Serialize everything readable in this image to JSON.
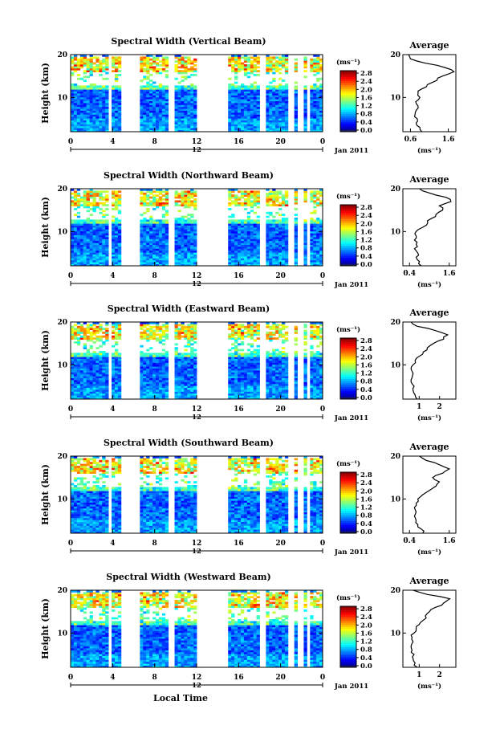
{
  "chart_data": [
    {
      "type": "heatmap",
      "title": "Spectral Width (Vertical Beam)",
      "ylabel": "Height (km)",
      "xticks": [
        "0",
        "4",
        "8",
        "12",
        "16",
        "20",
        "0"
      ],
      "yticks": [
        "10",
        "20"
      ],
      "date_tick": "12",
      "date_label": "Jan 2011",
      "xlim": [
        0,
        24
      ],
      "ylim": [
        2,
        20
      ],
      "data_gaps_hours": [
        [
          3.5,
          4
        ],
        [
          4.8,
          6.7
        ],
        [
          9.4,
          9.8
        ],
        [
          12,
          14.9
        ],
        [
          18.1,
          18.6
        ],
        [
          20.7,
          21.2
        ],
        [
          21.7,
          22.1
        ],
        [
          22.4,
          22.8
        ]
      ],
      "colorbar": {
        "unit": "(ms⁻¹)",
        "ticks": [
          "0.0",
          "0.4",
          "0.8",
          "1.2",
          "1.6",
          "2.0",
          "2.4",
          "2.8"
        ],
        "range": [
          0,
          3.0
        ]
      },
      "profile": {
        "title": "Average",
        "xticks": [
          "0.6",
          "1.6"
        ],
        "xlim": [
          0.4,
          1.8
        ],
        "yticks": [
          "10",
          "20"
        ],
        "xlabel": "(ms⁻¹)",
        "heights": [
          2,
          3,
          4,
          5,
          6,
          7,
          8,
          9,
          10,
          11,
          12,
          13,
          14,
          15,
          16,
          17,
          18,
          19,
          20
        ],
        "values": [
          0.9,
          0.85,
          0.75,
          0.78,
          0.72,
          0.75,
          0.8,
          0.74,
          0.85,
          0.8,
          0.9,
          1.05,
          1.3,
          1.45,
          1.75,
          1.5,
          1.0,
          0.6,
          0.55
        ]
      }
    },
    {
      "type": "heatmap",
      "title": "Spectral Width (Northward Beam)",
      "ylabel": "Height (km)",
      "xticks": [
        "0",
        "4",
        "8",
        "12",
        "16",
        "20",
        "0"
      ],
      "yticks": [
        "10",
        "20"
      ],
      "date_tick": "12",
      "date_label": "Jan 2011",
      "xlim": [
        0,
        24
      ],
      "ylim": [
        2,
        20
      ],
      "data_gaps_hours": [
        [
          3.5,
          4
        ],
        [
          4.8,
          6.7
        ],
        [
          9.4,
          9.8
        ],
        [
          12,
          14.9
        ],
        [
          18.1,
          18.6
        ],
        [
          20.7,
          21.2
        ],
        [
          21.7,
          22.1
        ],
        [
          22.4,
          22.8
        ]
      ],
      "colorbar": {
        "unit": "(ms⁻¹)",
        "ticks": [
          "0.0",
          "0.4",
          "0.8",
          "1.2",
          "1.6",
          "2.0",
          "2.4",
          "2.8"
        ],
        "range": [
          0,
          3.0
        ]
      },
      "profile": {
        "title": "Average",
        "xticks": [
          "0.4",
          "1.6"
        ],
        "xlim": [
          0.2,
          1.8
        ],
        "yticks": [
          "10",
          "20"
        ],
        "xlabel": "(ms⁻¹)",
        "heights": [
          2,
          3,
          4,
          5,
          6,
          7,
          8,
          9,
          10,
          11,
          12,
          13,
          14,
          15,
          16,
          17,
          18,
          19,
          20
        ],
        "values": [
          0.75,
          0.7,
          0.6,
          0.65,
          0.55,
          0.6,
          0.55,
          0.6,
          0.6,
          0.8,
          0.95,
          1.05,
          1.2,
          1.4,
          1.3,
          1.65,
          1.5,
          1.0,
          0.7
        ]
      }
    },
    {
      "type": "heatmap",
      "title": "Spectral Width (Eastward Beam)",
      "ylabel": "Height (km)",
      "xticks": [
        "0",
        "4",
        "8",
        "12",
        "16",
        "20",
        "0"
      ],
      "yticks": [
        "10",
        "20"
      ],
      "date_tick": "12",
      "date_label": "Jan 2011",
      "xlim": [
        0,
        24
      ],
      "ylim": [
        2,
        20
      ],
      "data_gaps_hours": [
        [
          3.5,
          4
        ],
        [
          4.8,
          6.7
        ],
        [
          9.4,
          9.8
        ],
        [
          12,
          14.9
        ],
        [
          18.1,
          18.6
        ],
        [
          20.7,
          21.2
        ],
        [
          21.7,
          22.1
        ],
        [
          22.4,
          22.8
        ]
      ],
      "colorbar": {
        "unit": "(ms⁻¹)",
        "ticks": [
          "0.0",
          "0.4",
          "0.8",
          "1.2",
          "1.6",
          "2.0",
          "2.4",
          "2.8"
        ],
        "range": [
          0,
          3.0
        ]
      },
      "profile": {
        "title": "Average",
        "xticks": [
          "1",
          "2"
        ],
        "xlim": [
          0.2,
          2.8
        ],
        "yticks": [
          "10",
          "20"
        ],
        "xlabel": "(ms⁻¹)",
        "heights": [
          2,
          3,
          4,
          5,
          6,
          7,
          8,
          9,
          10,
          11,
          12,
          13,
          14,
          15,
          16,
          17,
          18,
          19,
          20
        ],
        "values": [
          0.9,
          0.8,
          0.7,
          0.75,
          0.6,
          0.65,
          0.7,
          0.6,
          0.7,
          0.8,
          1.0,
          1.2,
          1.4,
          1.7,
          2.2,
          2.4,
          1.8,
          0.9,
          0.6
        ]
      }
    },
    {
      "type": "heatmap",
      "title": "Spectral Width (Southward Beam)",
      "ylabel": "Height (km)",
      "xticks": [
        "0",
        "4",
        "8",
        "12",
        "16",
        "20",
        "0"
      ],
      "yticks": [
        "10",
        "20"
      ],
      "date_tick": "12",
      "date_label": "Jan 2011",
      "xlim": [
        0,
        24
      ],
      "ylim": [
        2,
        20
      ],
      "data_gaps_hours": [
        [
          3.5,
          4
        ],
        [
          4.8,
          6.7
        ],
        [
          9.4,
          9.8
        ],
        [
          12,
          14.9
        ],
        [
          18.1,
          18.6
        ],
        [
          20.7,
          21.2
        ],
        [
          21.7,
          22.1
        ],
        [
          22.4,
          22.8
        ]
      ],
      "colorbar": {
        "unit": "(ms⁻¹)",
        "ticks": [
          "0.0",
          "0.4",
          "0.8",
          "1.2",
          "1.6",
          "2.0",
          "2.4",
          "2.8"
        ],
        "range": [
          0,
          3.0
        ]
      },
      "profile": {
        "title": "Average",
        "xticks": [
          "0.4",
          "1.6"
        ],
        "xlim": [
          0.2,
          1.8
        ],
        "yticks": [
          "10",
          "20"
        ],
        "xlabel": "(ms⁻¹)",
        "heights": [
          2,
          3,
          4,
          5,
          6,
          7,
          8,
          9,
          10,
          11,
          12,
          13,
          14,
          15,
          16,
          17,
          18,
          19,
          20
        ],
        "values": [
          0.8,
          0.75,
          0.65,
          0.6,
          0.55,
          0.6,
          0.55,
          0.6,
          0.65,
          0.8,
          1.0,
          1.2,
          1.3,
          1.1,
          1.4,
          1.6,
          1.3,
          0.9,
          0.7
        ]
      }
    },
    {
      "type": "heatmap",
      "title": "Spectral Width (Westward Beam)",
      "ylabel": "Height (km)",
      "xlabel": "Local Time",
      "xticks": [
        "0",
        "4",
        "8",
        "12",
        "16",
        "20",
        "0"
      ],
      "yticks": [
        "10",
        "20"
      ],
      "date_tick": "12",
      "date_label": "Jan 2011",
      "xlim": [
        0,
        24
      ],
      "ylim": [
        2,
        20
      ],
      "data_gaps_hours": [
        [
          3.5,
          4
        ],
        [
          4.8,
          6.7
        ],
        [
          9.4,
          9.8
        ],
        [
          12,
          14.9
        ],
        [
          18.1,
          18.6
        ],
        [
          20.7,
          21.2
        ],
        [
          21.7,
          22.1
        ],
        [
          22.4,
          22.8
        ]
      ],
      "colorbar": {
        "unit": "(ms⁻¹)",
        "ticks": [
          "0.0",
          "0.4",
          "0.8",
          "1.2",
          "1.6",
          "2.0",
          "2.4",
          "2.8"
        ],
        "range": [
          0,
          3.0
        ]
      },
      "profile": {
        "title": "Average",
        "xticks": [
          "1",
          "2"
        ],
        "xlim": [
          0.2,
          2.8
        ],
        "yticks": [
          "10",
          "20"
        ],
        "xlabel": "(ms⁻¹)",
        "heights": [
          2,
          3,
          4,
          5,
          6,
          7,
          8,
          9,
          10,
          11,
          12,
          13,
          14,
          15,
          16,
          17,
          18,
          19,
          20
        ],
        "values": [
          0.9,
          0.8,
          0.7,
          0.75,
          0.65,
          0.6,
          0.7,
          0.65,
          0.75,
          0.85,
          1.0,
          1.2,
          1.3,
          1.5,
          1.8,
          2.2,
          2.5,
          1.4,
          0.7
        ]
      }
    }
  ]
}
